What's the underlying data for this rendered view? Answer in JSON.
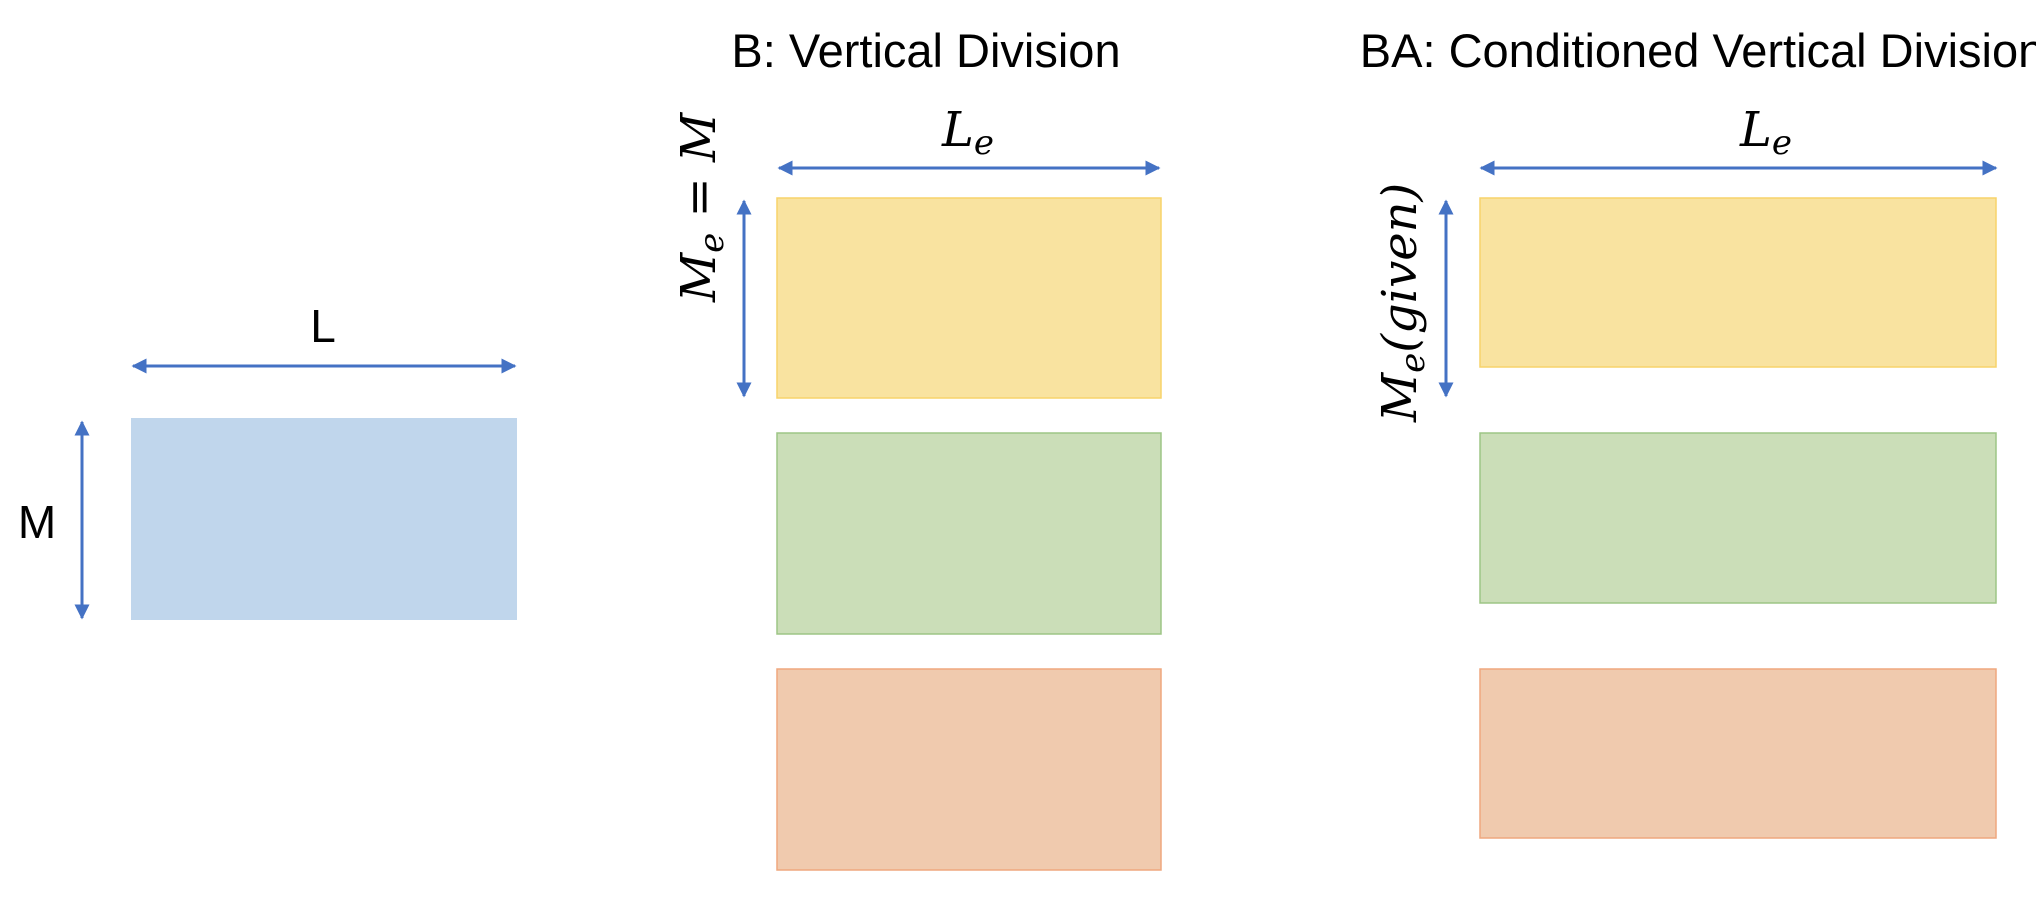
{
  "colors": {
    "arrow": "#4472C4",
    "blue_fill": "#C0D6EC",
    "yellow_fill": "#F9E3A0",
    "yellow_stroke": "#F7D36A",
    "green_fill": "#CBDEB8",
    "green_stroke": "#9DC585",
    "orange_fill": "#F0CAAE",
    "orange_stroke": "#EFA77E"
  },
  "panel_a": {
    "width_label": "L",
    "height_label": "M"
  },
  "panel_b": {
    "title": "B: Vertical Division",
    "width_label_main": "L",
    "width_label_sub": "e",
    "height_label_main": "M",
    "height_label_sub": "e",
    "height_label_rest": " = M"
  },
  "panel_ba": {
    "title": "BA: Conditioned Vertical Division",
    "width_label_main": "L",
    "width_label_sub": "e",
    "height_label_main": "M",
    "height_label_sub": "e",
    "height_label_rest": "(given)"
  }
}
